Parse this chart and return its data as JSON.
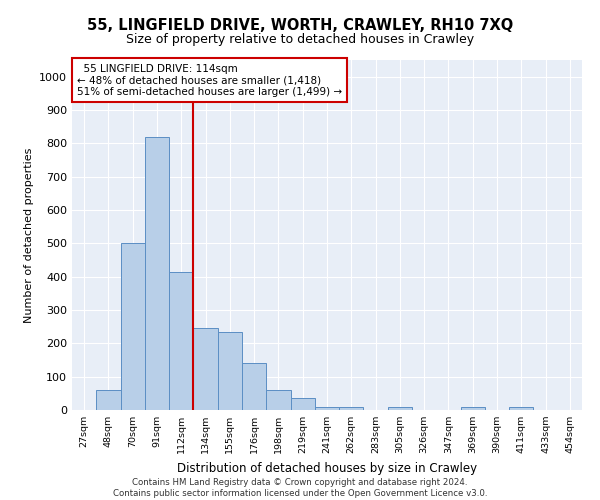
{
  "title": "55, LINGFIELD DRIVE, WORTH, CRAWLEY, RH10 7XQ",
  "subtitle": "Size of property relative to detached houses in Crawley",
  "xlabel": "Distribution of detached houses by size in Crawley",
  "ylabel": "Number of detached properties",
  "categories": [
    "27sqm",
    "48sqm",
    "70sqm",
    "91sqm",
    "112sqm",
    "134sqm",
    "155sqm",
    "176sqm",
    "198sqm",
    "219sqm",
    "241sqm",
    "262sqm",
    "283sqm",
    "305sqm",
    "326sqm",
    "347sqm",
    "369sqm",
    "390sqm",
    "411sqm",
    "433sqm",
    "454sqm"
  ],
  "values": [
    0,
    60,
    500,
    820,
    415,
    245,
    235,
    140,
    60,
    35,
    10,
    10,
    0,
    10,
    0,
    0,
    10,
    0,
    10,
    0,
    0
  ],
  "bar_color": "#b8cfe8",
  "bar_edge_color": "#5b8ec4",
  "vline_color": "#cc0000",
  "annotation_text": "  55 LINGFIELD DRIVE: 114sqm\n← 48% of detached houses are smaller (1,418)\n51% of semi-detached houses are larger (1,499) →",
  "annotation_box_color": "#ffffff",
  "annotation_box_edge": "#cc0000",
  "ylim": [
    0,
    1050
  ],
  "yticks": [
    0,
    100,
    200,
    300,
    400,
    500,
    600,
    700,
    800,
    900,
    1000
  ],
  "footer_line1": "Contains HM Land Registry data © Crown copyright and database right 2024.",
  "footer_line2": "Contains public sector information licensed under the Open Government Licence v3.0.",
  "bg_color": "#e8eef7",
  "fig_bg_color": "#ffffff"
}
